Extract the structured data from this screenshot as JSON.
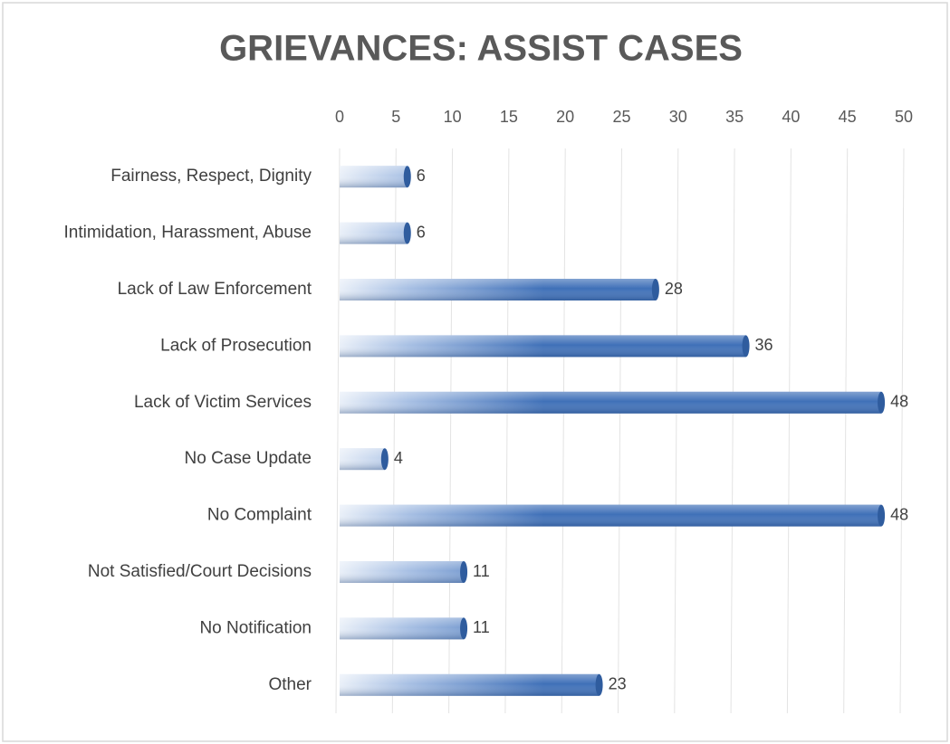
{
  "chart_data": {
    "type": "bar",
    "orientation": "horizontal",
    "title": "GRIEVANCES: ASSIST CASES",
    "categories": [
      "Fairness, Respect, Dignity",
      "Intimidation, Harassment, Abuse",
      "Lack of Law Enforcement",
      "Lack of Prosecution",
      "Lack of Victim Services",
      "No Case Update",
      "No Complaint",
      "Not Satisfied/Court Decisions",
      "No Notification",
      "Other"
    ],
    "values": [
      6,
      6,
      28,
      36,
      48,
      4,
      48,
      11,
      11,
      23
    ],
    "color": "#3f70b8",
    "xlim": [
      0,
      50
    ],
    "xticks": [
      0,
      5,
      10,
      15,
      20,
      25,
      30,
      35,
      40,
      45,
      50
    ],
    "grid": true
  }
}
